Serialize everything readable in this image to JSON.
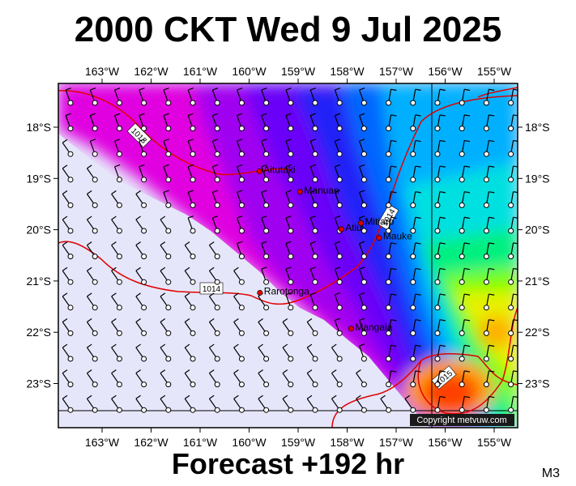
{
  "title": "2000 CKT Wed 9 Jul 2025",
  "footer": "Forecast +192 hr",
  "model_code": "M3",
  "copyright": "Copyright metvuw.com",
  "longitude_ticks": [
    "163°W",
    "162°W",
    "161°W",
    "160°W",
    "159°W",
    "158°W",
    "157°W",
    "156°W",
    "155°W"
  ],
  "latitude_ticks": [
    "18°S",
    "19°S",
    "20°S",
    "21°S",
    "22°S",
    "23°S"
  ],
  "places": [
    {
      "name": "Aitutaki",
      "lon": -159.79,
      "lat": -18.86
    },
    {
      "name": "Manuae",
      "lon": -158.96,
      "lat": -19.26
    },
    {
      "name": "Atiu",
      "lon": -158.12,
      "lat": -19.99
    },
    {
      "name": "Mitiaro",
      "lon": -157.72,
      "lat": -19.87
    },
    {
      "name": "Mauke",
      "lon": -157.35,
      "lat": -20.16
    },
    {
      "name": "Rarotonga",
      "lon": -159.78,
      "lat": -21.23
    },
    {
      "name": "Mangaia",
      "lon": -157.92,
      "lat": -21.93
    }
  ],
  "isobar_labels": [
    "1013",
    "1014",
    "1014",
    "1015"
  ],
  "colors": {
    "land_mask": "#e6e6fb",
    "isobar": "#e00000",
    "place_dot": "#dd0000"
  }
}
